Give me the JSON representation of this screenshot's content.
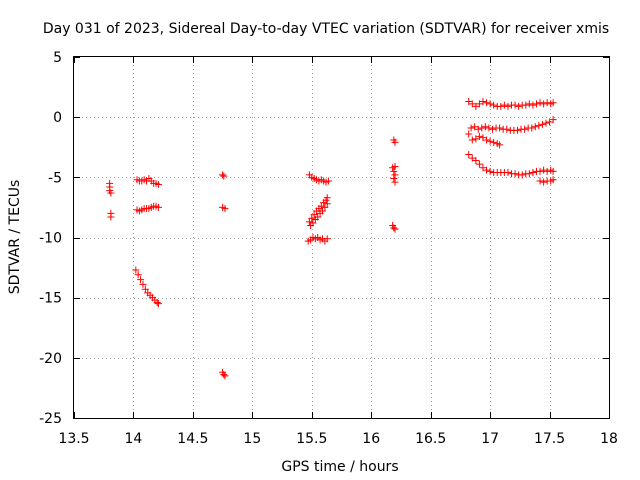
{
  "chart_data": {
    "type": "scatter",
    "title": "Day 031 of 2023, Sidereal Day-to-day VTEC variation (SDTVAR) for receiver xmis",
    "xlabel": "GPS time / hours",
    "ylabel": "SDTVAR / TECUs",
    "xlim": [
      13.5,
      18
    ],
    "ylim": [
      -25,
      5
    ],
    "xticks": [
      13.5,
      14,
      14.5,
      15,
      15.5,
      16,
      16.5,
      17,
      17.5,
      18
    ],
    "yticks": [
      5,
      0,
      -5,
      -10,
      -15,
      -20,
      -25
    ],
    "xtick_labels": [
      "13.5",
      "14",
      "14.5",
      "15",
      "15.5",
      "16",
      "16.5",
      "17",
      "17.5",
      "18"
    ],
    "ytick_labels": [
      "5",
      "0",
      "-5",
      "-10",
      "-15",
      "-20",
      "-25"
    ],
    "grid": true,
    "legend": "none",
    "marker": "+",
    "color": "#ff0000",
    "series": [
      {
        "name": "SDTVAR",
        "points": [
          [
            13.8,
            -5.5
          ],
          [
            13.8,
            -5.8
          ],
          [
            13.8,
            -6.1
          ],
          [
            13.81,
            -6.3
          ],
          [
            13.81,
            -8.0
          ],
          [
            13.81,
            -8.3
          ],
          [
            14.03,
            -5.2
          ],
          [
            14.05,
            -5.3
          ],
          [
            14.07,
            -5.3
          ],
          [
            14.09,
            -5.2
          ],
          [
            14.11,
            -5.3
          ],
          [
            14.13,
            -5.1
          ],
          [
            14.15,
            -5.3
          ],
          [
            14.17,
            -5.5
          ],
          [
            14.19,
            -5.5
          ],
          [
            14.21,
            -5.6
          ],
          [
            14.03,
            -7.7
          ],
          [
            14.05,
            -7.8
          ],
          [
            14.07,
            -7.7
          ],
          [
            14.09,
            -7.6
          ],
          [
            14.11,
            -7.6
          ],
          [
            14.13,
            -7.6
          ],
          [
            14.15,
            -7.5
          ],
          [
            14.17,
            -7.4
          ],
          [
            14.19,
            -7.4
          ],
          [
            14.21,
            -7.5
          ],
          [
            14.02,
            -12.7
          ],
          [
            14.04,
            -13.1
          ],
          [
            14.06,
            -13.5
          ],
          [
            14.08,
            -13.9
          ],
          [
            14.1,
            -14.3
          ],
          [
            14.12,
            -14.6
          ],
          [
            14.14,
            -14.8
          ],
          [
            14.16,
            -15.0
          ],
          [
            14.18,
            -15.2
          ],
          [
            14.2,
            -15.4
          ],
          [
            14.21,
            -15.5
          ],
          [
            14.75,
            -4.8
          ],
          [
            14.76,
            -4.9
          ],
          [
            14.75,
            -7.5
          ],
          [
            14.77,
            -7.6
          ],
          [
            14.75,
            -21.2
          ],
          [
            14.76,
            -21.4
          ],
          [
            14.77,
            -21.5
          ],
          [
            15.48,
            -4.8
          ],
          [
            15.5,
            -5.0
          ],
          [
            15.52,
            -5.1
          ],
          [
            15.54,
            -5.2
          ],
          [
            15.56,
            -5.3
          ],
          [
            15.58,
            -5.2
          ],
          [
            15.6,
            -5.3
          ],
          [
            15.62,
            -5.4
          ],
          [
            15.64,
            -5.3
          ],
          [
            15.48,
            -8.7
          ],
          [
            15.5,
            -8.4
          ],
          [
            15.52,
            -8.1
          ],
          [
            15.54,
            -7.8
          ],
          [
            15.56,
            -7.6
          ],
          [
            15.58,
            -7.4
          ],
          [
            15.6,
            -7.1
          ],
          [
            15.62,
            -6.9
          ],
          [
            15.63,
            -6.7
          ],
          [
            15.49,
            -9.0
          ],
          [
            15.51,
            -8.8
          ],
          [
            15.53,
            -8.5
          ],
          [
            15.55,
            -8.3
          ],
          [
            15.57,
            -8.0
          ],
          [
            15.59,
            -7.8
          ],
          [
            15.61,
            -7.5
          ],
          [
            15.63,
            -7.2
          ],
          [
            15.47,
            -10.3
          ],
          [
            15.49,
            -10.2
          ],
          [
            15.51,
            -10.0
          ],
          [
            15.53,
            -10.1
          ],
          [
            15.55,
            -10.0
          ],
          [
            15.57,
            -10.2
          ],
          [
            15.59,
            -10.1
          ],
          [
            15.61,
            -10.3
          ],
          [
            15.63,
            -10.1
          ],
          [
            16.19,
            -1.9
          ],
          [
            16.2,
            -2.1
          ],
          [
            16.18,
            -4.2
          ],
          [
            16.19,
            -4.5
          ],
          [
            16.2,
            -4.1
          ],
          [
            16.2,
            -4.8
          ],
          [
            16.19,
            -5.1
          ],
          [
            16.2,
            -5.4
          ],
          [
            16.18,
            -9.0
          ],
          [
            16.19,
            -9.2
          ],
          [
            16.2,
            -9.3
          ],
          [
            16.82,
            1.3
          ],
          [
            16.85,
            1.1
          ],
          [
            16.88,
            0.9
          ],
          [
            16.91,
            1.1
          ],
          [
            16.94,
            1.3
          ],
          [
            16.97,
            1.2
          ],
          [
            17.0,
            1.1
          ],
          [
            17.03,
            1.0
          ],
          [
            17.06,
            0.9
          ],
          [
            17.09,
            0.9
          ],
          [
            17.12,
            1.0
          ],
          [
            17.15,
            0.9
          ],
          [
            17.18,
            1.0
          ],
          [
            17.21,
            1.0
          ],
          [
            17.24,
            0.9
          ],
          [
            17.27,
            1.0
          ],
          [
            17.3,
            1.0
          ],
          [
            17.33,
            1.1
          ],
          [
            17.36,
            1.0
          ],
          [
            17.39,
            1.1
          ],
          [
            17.42,
            1.2
          ],
          [
            17.45,
            1.1
          ],
          [
            17.48,
            1.2
          ],
          [
            17.51,
            1.1
          ],
          [
            17.53,
            1.2
          ],
          [
            16.82,
            -1.4
          ],
          [
            16.84,
            -0.9
          ],
          [
            16.87,
            -0.8
          ],
          [
            16.9,
            -1.0
          ],
          [
            16.93,
            -0.9
          ],
          [
            16.96,
            -0.8
          ],
          [
            16.99,
            -0.9
          ],
          [
            17.02,
            -1.0
          ],
          [
            17.05,
            -0.9
          ],
          [
            17.08,
            -0.9
          ],
          [
            17.11,
            -1.0
          ],
          [
            17.14,
            -1.0
          ],
          [
            17.17,
            -1.1
          ],
          [
            17.2,
            -1.1
          ],
          [
            17.23,
            -1.1
          ],
          [
            17.26,
            -1.0
          ],
          [
            17.29,
            -1.0
          ],
          [
            17.32,
            -0.9
          ],
          [
            17.35,
            -0.9
          ],
          [
            17.38,
            -0.8
          ],
          [
            17.41,
            -0.7
          ],
          [
            17.44,
            -0.6
          ],
          [
            17.47,
            -0.5
          ],
          [
            17.5,
            -0.4
          ],
          [
            17.53,
            -0.2
          ],
          [
            16.85,
            -1.9
          ],
          [
            16.88,
            -1.8
          ],
          [
            16.91,
            -1.6
          ],
          [
            16.94,
            -1.7
          ],
          [
            16.97,
            -1.9
          ],
          [
            17.0,
            -2.0
          ],
          [
            17.03,
            -2.1
          ],
          [
            17.06,
            -2.2
          ],
          [
            17.08,
            -2.3
          ],
          [
            16.82,
            -3.1
          ],
          [
            16.85,
            -3.4
          ],
          [
            16.88,
            -3.6
          ],
          [
            16.91,
            -3.9
          ],
          [
            16.94,
            -4.2
          ],
          [
            16.97,
            -4.4
          ],
          [
            17.0,
            -4.5
          ],
          [
            17.03,
            -4.6
          ],
          [
            17.06,
            -4.6
          ],
          [
            17.09,
            -4.6
          ],
          [
            17.12,
            -4.6
          ],
          [
            17.15,
            -4.6
          ],
          [
            17.18,
            -4.7
          ],
          [
            17.21,
            -4.7
          ],
          [
            17.24,
            -4.8
          ],
          [
            17.27,
            -4.8
          ],
          [
            17.3,
            -4.7
          ],
          [
            17.33,
            -4.7
          ],
          [
            17.36,
            -4.6
          ],
          [
            17.39,
            -4.5
          ],
          [
            17.42,
            -4.5
          ],
          [
            17.45,
            -4.4
          ],
          [
            17.48,
            -4.5
          ],
          [
            17.51,
            -4.4
          ],
          [
            17.53,
            -4.5
          ],
          [
            17.42,
            -5.3
          ],
          [
            17.45,
            -5.4
          ],
          [
            17.48,
            -5.3
          ],
          [
            17.51,
            -5.3
          ],
          [
            17.53,
            -5.2
          ]
        ]
      }
    ]
  }
}
